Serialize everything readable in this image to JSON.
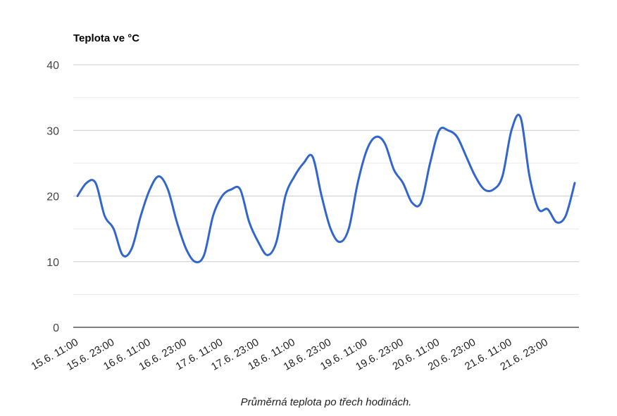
{
  "chart_data": {
    "type": "line",
    "title": "Teplota ve °C",
    "caption": "Průměrná teplota po třech hodinách.",
    "ylim": [
      0,
      40
    ],
    "yticks": [
      0,
      10,
      20,
      30,
      40
    ],
    "grid": true,
    "x_ticks": [
      "15.6. 11:00",
      "15.6. 23:00",
      "16.6. 11:00",
      "16.6. 23:00",
      "17.6. 11:00",
      "17.6. 23:00",
      "18.6. 11:00",
      "18.6. 23:00",
      "19.6. 11:00",
      "19.6. 23:00",
      "20.6. 11:00",
      "20.6. 23:00",
      "21.6. 11:00",
      "21.6. 23:00"
    ],
    "series": [
      {
        "color": "#3366cc",
        "values": [
          20,
          22,
          22,
          17,
          15,
          11,
          12,
          17,
          21,
          23,
          21,
          16,
          12,
          10,
          11,
          17,
          20,
          21,
          21,
          16,
          13,
          11,
          13,
          20,
          23,
          25,
          26,
          20,
          15,
          13,
          15,
          22,
          27,
          29,
          28,
          24,
          22,
          19,
          19,
          25,
          30,
          30,
          29,
          26,
          23,
          21,
          21,
          23,
          30,
          32,
          23,
          18,
          18,
          16,
          17,
          22
        ]
      }
    ]
  }
}
